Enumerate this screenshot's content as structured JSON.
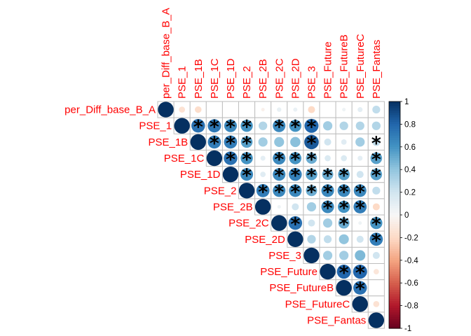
{
  "chart_data": {
    "type": "heatmap",
    "style": "upper-triangle circle correlation matrix",
    "title": "",
    "variables": [
      "per_Diff_base_B_A",
      "PSE_1",
      "PSE_1B",
      "PSE_1C",
      "PSE_1D",
      "PSE_2",
      "PSE_2B",
      "PSE_2C",
      "PSE_2D",
      "PSE_3",
      "PSE_Future",
      "PSE_FutureB",
      "PSE_FutureC",
      "PSE_Fantas"
    ],
    "matrix": [
      [
        1,
        -0.15,
        -0.18,
        0,
        0,
        0,
        -0.05,
        0.08,
        0.07,
        -0.2,
        0,
        0.05,
        0.1,
        0.25
      ],
      [
        null,
        1,
        0.75,
        0.72,
        0.65,
        0.6,
        0.3,
        0.65,
        0.6,
        0.8,
        0.35,
        0.3,
        0.3,
        0.3
      ],
      [
        null,
        null,
        1,
        0.7,
        0.7,
        0.55,
        0.35,
        0.4,
        0.42,
        0.85,
        0.2,
        0.12,
        0.35,
        0.25
      ],
      [
        null,
        null,
        null,
        1,
        0.75,
        0.6,
        0.1,
        0.65,
        0.6,
        0.5,
        0.15,
        0.15,
        0.1,
        0.55
      ],
      [
        null,
        null,
        null,
        null,
        1,
        0.65,
        0.12,
        0.65,
        0.68,
        0.55,
        0.5,
        0.55,
        0.2,
        0.55
      ],
      [
        null,
        null,
        null,
        null,
        null,
        1,
        0.7,
        0.65,
        0.65,
        0.5,
        0.65,
        0.65,
        0.65,
        0.25
      ],
      [
        null,
        null,
        null,
        null,
        null,
        null,
        1,
        0.05,
        0.2,
        0.35,
        0.65,
        0.6,
        0.7,
        -0.2
      ],
      [
        null,
        null,
        null,
        null,
        null,
        null,
        null,
        1,
        0.75,
        0.2,
        0.35,
        0.5,
        0.05,
        0.6
      ],
      [
        null,
        null,
        null,
        null,
        null,
        null,
        null,
        null,
        1,
        0.3,
        0.25,
        0.4,
        0.2,
        0.7
      ],
      [
        null,
        null,
        null,
        null,
        null,
        null,
        null,
        null,
        null,
        1,
        0.35,
        0.35,
        0.45,
        0.2
      ],
      [
        null,
        null,
        null,
        null,
        null,
        null,
        null,
        null,
        null,
        null,
        1,
        0.8,
        0.8,
        -0.12
      ],
      [
        null,
        null,
        null,
        null,
        null,
        null,
        null,
        null,
        null,
        null,
        null,
        1,
        0.75,
        0
      ],
      [
        null,
        null,
        null,
        null,
        null,
        null,
        null,
        null,
        null,
        null,
        null,
        null,
        1,
        -0.15
      ],
      [
        null,
        null,
        null,
        null,
        null,
        null,
        null,
        null,
        null,
        null,
        null,
        null,
        null,
        1
      ]
    ],
    "significant_marker": "*",
    "significant": [
      [
        1,
        2
      ],
      [
        1,
        3
      ],
      [
        1,
        4
      ],
      [
        1,
        5
      ],
      [
        1,
        7
      ],
      [
        1,
        8
      ],
      [
        1,
        9
      ],
      [
        2,
        3
      ],
      [
        2,
        4
      ],
      [
        2,
        5
      ],
      [
        2,
        9
      ],
      [
        2,
        13
      ],
      [
        3,
        4
      ],
      [
        3,
        5
      ],
      [
        3,
        7
      ],
      [
        3,
        8
      ],
      [
        3,
        9
      ],
      [
        3,
        13
      ],
      [
        4,
        5
      ],
      [
        4,
        7
      ],
      [
        4,
        8
      ],
      [
        4,
        9
      ],
      [
        4,
        10
      ],
      [
        4,
        11
      ],
      [
        4,
        13
      ],
      [
        5,
        6
      ],
      [
        5,
        7
      ],
      [
        5,
        8
      ],
      [
        5,
        9
      ],
      [
        5,
        10
      ],
      [
        5,
        11
      ],
      [
        5,
        12
      ],
      [
        6,
        10
      ],
      [
        6,
        11
      ],
      [
        6,
        12
      ],
      [
        7,
        8
      ],
      [
        7,
        11
      ],
      [
        7,
        13
      ],
      [
        8,
        13
      ],
      [
        10,
        11
      ],
      [
        10,
        12
      ],
      [
        11,
        12
      ]
    ],
    "colorbar": {
      "range": [
        -1,
        1
      ],
      "tick_labels": [
        "1",
        "0.8",
        "0.6",
        "0.4",
        "0.2",
        "0",
        "-0.2",
        "-0.4",
        "-0.6",
        "-0.8",
        "-1"
      ],
      "low_color": "#67001F",
      "mid_color": "#F7F7F7",
      "high_color": "#053061"
    },
    "label_color": "#FF0000",
    "grid_color": "#BEBEBE"
  }
}
